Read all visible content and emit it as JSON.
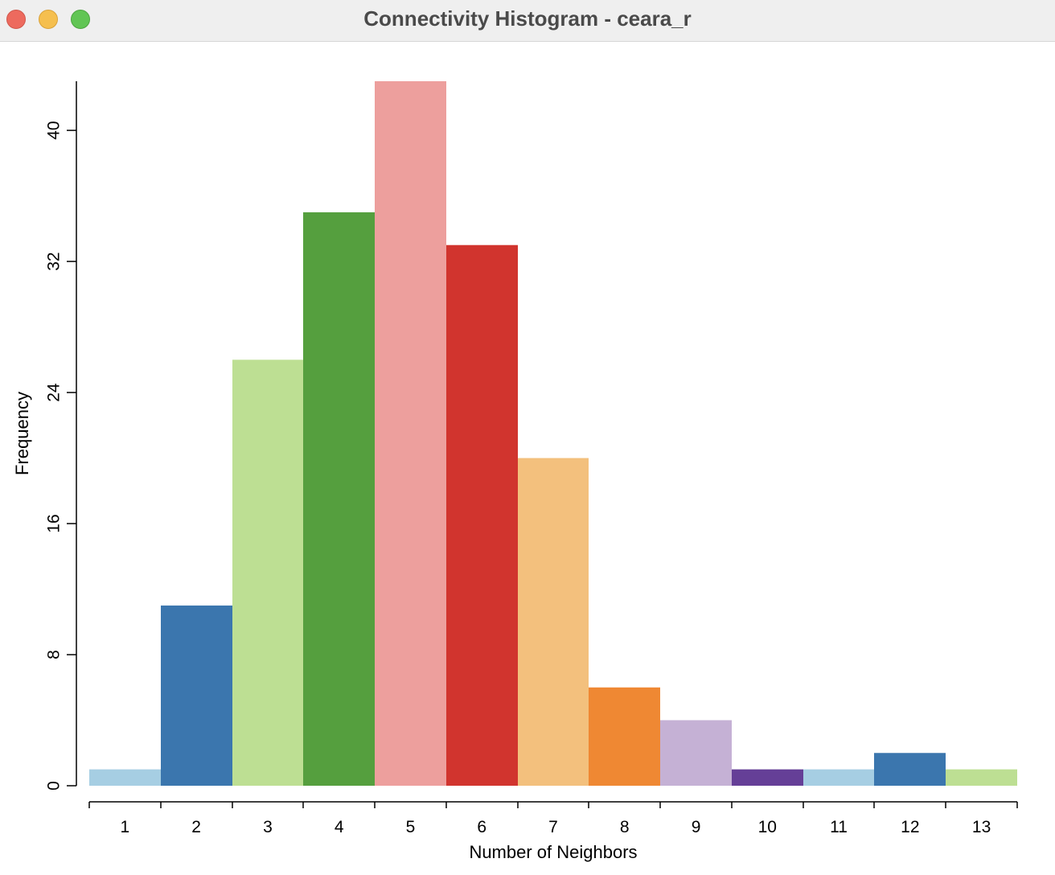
{
  "window": {
    "title": "Connectivity Histogram - ceara_r"
  },
  "colors": {
    "titlebar_bg": "#efefef",
    "close": "#ed6a5e",
    "minimize": "#f5bf4f",
    "maximize": "#61c554"
  },
  "chart_data": {
    "type": "bar",
    "title": "",
    "xlabel": "Number of Neighbors",
    "ylabel": "Frequency",
    "categories": [
      "1",
      "2",
      "3",
      "4",
      "5",
      "6",
      "7",
      "8",
      "9",
      "10",
      "11",
      "12",
      "13"
    ],
    "values": [
      1,
      11,
      26,
      35,
      43,
      33,
      20,
      6,
      4,
      1,
      1,
      2,
      1
    ],
    "colors": [
      "#a6cee3",
      "#3b76ae",
      "#bddf93",
      "#559f3e",
      "#ed9f9d",
      "#d1342e",
      "#f3c07d",
      "#ef8833",
      "#c5b1d5",
      "#653f97",
      "#a6cee3",
      "#3b76ae",
      "#bddf93"
    ],
    "ylim": [
      0,
      43
    ],
    "yticks": [
      0,
      8,
      16,
      24,
      32,
      40
    ],
    "grid": false,
    "legend": "none"
  }
}
